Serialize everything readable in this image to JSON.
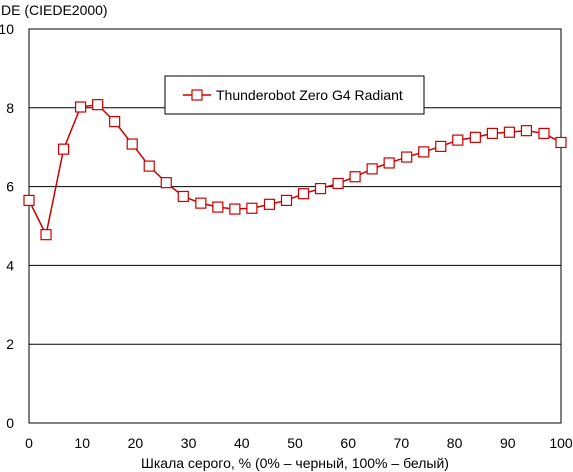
{
  "chart_data": {
    "type": "line",
    "ylabel": "DE (CIEDE2000)",
    "xlabel": "Шкала серого, % (0% – черный, 100% – белый)",
    "xlim": [
      0,
      100
    ],
    "ylim": [
      0,
      10
    ],
    "x_ticks": [
      "0",
      "10",
      "20",
      "30",
      "40",
      "50",
      "60",
      "70",
      "80",
      "90",
      "100"
    ],
    "y_ticks": [
      "0",
      "2",
      "4",
      "6",
      "8",
      "10"
    ],
    "grid": "horizontal",
    "legend_position": "top-center",
    "series": [
      {
        "name": "Thunderobot Zero G4 Radiant",
        "color": "#cc0000",
        "marker": "open-square",
        "x": [
          0,
          3.2,
          6.5,
          9.7,
          12.9,
          16.1,
          19.4,
          22.6,
          25.8,
          29.0,
          32.3,
          35.5,
          38.7,
          41.9,
          45.2,
          48.4,
          51.6,
          54.8,
          58.1,
          61.3,
          64.5,
          67.7,
          71.0,
          74.2,
          77.4,
          80.6,
          83.9,
          87.1,
          90.3,
          93.5,
          96.8,
          100
        ],
        "y": [
          5.65,
          4.78,
          6.95,
          8.02,
          8.08,
          7.65,
          7.08,
          6.52,
          6.1,
          5.75,
          5.58,
          5.48,
          5.43,
          5.45,
          5.55,
          5.65,
          5.82,
          5.95,
          6.08,
          6.25,
          6.45,
          6.6,
          6.75,
          6.88,
          7.02,
          7.18,
          7.25,
          7.35,
          7.38,
          7.42,
          7.35,
          7.12
        ]
      }
    ]
  }
}
